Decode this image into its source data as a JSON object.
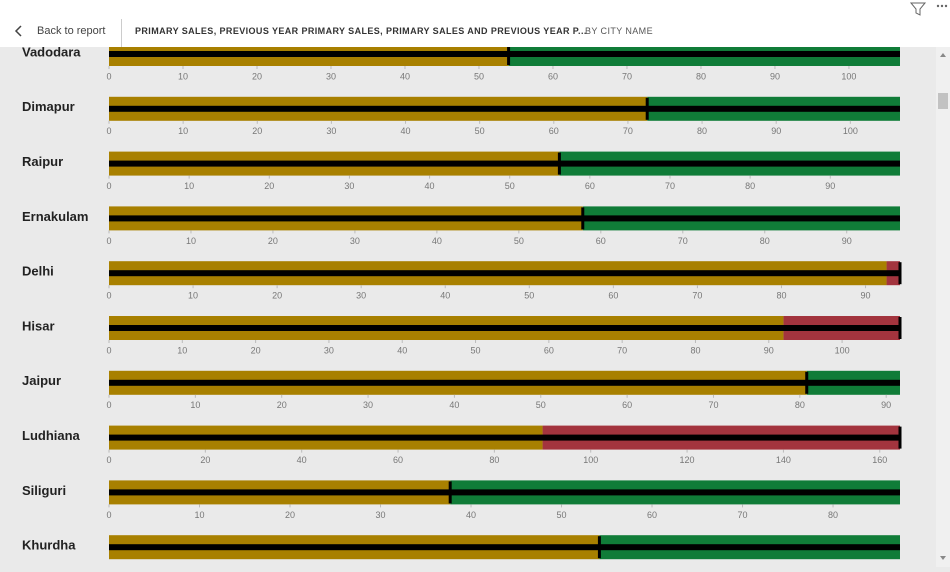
{
  "header": {
    "back": "Back to report",
    "title": "PRIMARY SALES, PREVIOUS YEAR PRIMARY SALES, PRIMARY SALES AND PREVIOUS YEAR P...",
    "subtitle": "BY CITY NAME"
  },
  "chart_data": [
    {
      "type": "bullet",
      "title": "Vadodara",
      "value": 54,
      "marker": 54,
      "xlim": [
        0,
        106.9
      ],
      "xticks": [
        0,
        10,
        20,
        30,
        40,
        50,
        60,
        70,
        80,
        90,
        100
      ],
      "bar_color": "#a88000",
      "band_color": "#107c38"
    },
    {
      "type": "bullet",
      "title": "Dimapur",
      "value": 72.6,
      "marker": 72.6,
      "xlim": [
        0,
        106.7
      ],
      "xticks": [
        0,
        10,
        20,
        30,
        40,
        50,
        60,
        70,
        80,
        90,
        100
      ],
      "bar_color": "#a88000",
      "band_color": "#107c38"
    },
    {
      "type": "bullet",
      "title": "Raipur",
      "value": 56.2,
      "marker": 56.2,
      "xlim": [
        0,
        98.7
      ],
      "xticks": [
        0,
        10,
        20,
        30,
        40,
        50,
        60,
        70,
        80,
        90
      ],
      "bar_color": "#a88000",
      "band_color": "#107c38"
    },
    {
      "type": "bullet",
      "title": "Ernakulam",
      "value": 57.8,
      "marker": 57.8,
      "xlim": [
        0,
        96.5
      ],
      "xticks": [
        0,
        10,
        20,
        30,
        40,
        50,
        60,
        70,
        80,
        90
      ],
      "bar_color": "#a88000",
      "band_color": "#107c38"
    },
    {
      "type": "bullet",
      "title": "Delhi",
      "value": 92.5,
      "marker": 94.1,
      "xlim": [
        0,
        94.1
      ],
      "xticks": [
        0,
        10,
        20,
        30,
        40,
        50,
        60,
        70,
        80,
        90
      ],
      "bar_color": "#a88000",
      "band_color": "#a3343e"
    },
    {
      "type": "bullet",
      "title": "Hisar",
      "value": 92,
      "marker": 107.9,
      "xlim": [
        0,
        107.9
      ],
      "xticks": [
        0,
        10,
        20,
        30,
        40,
        50,
        60,
        70,
        80,
        90,
        100
      ],
      "bar_color": "#a88000",
      "band_color": "#a3343e"
    },
    {
      "type": "bullet",
      "title": "Jaipur",
      "value": 80.8,
      "marker": 80.8,
      "xlim": [
        0,
        91.6
      ],
      "xticks": [
        0,
        10,
        20,
        30,
        40,
        50,
        60,
        70,
        80,
        90
      ],
      "bar_color": "#a88000",
      "band_color": "#107c38"
    },
    {
      "type": "bullet",
      "title": "Ludhiana",
      "value": 90,
      "marker": 164.2,
      "xlim": [
        0,
        164.2
      ],
      "xticks": [
        0,
        20,
        40,
        60,
        80,
        100,
        120,
        140,
        160
      ],
      "bar_color": "#a88000",
      "band_color": "#a3343e"
    },
    {
      "type": "bullet",
      "title": "Siliguri",
      "value": 37.7,
      "marker": 37.7,
      "xlim": [
        0,
        87.4
      ],
      "xticks": [
        0,
        10,
        20,
        30,
        40,
        50,
        60,
        70,
        80
      ],
      "bar_color": "#a88000",
      "band_color": "#107c38"
    },
    {
      "type": "bullet",
      "title": "Khurdha",
      "value": 62,
      "marker": 62,
      "xlim": [
        0,
        100
      ],
      "xticks": [],
      "bar_color": "#a88000",
      "band_color": "#107c38"
    }
  ]
}
